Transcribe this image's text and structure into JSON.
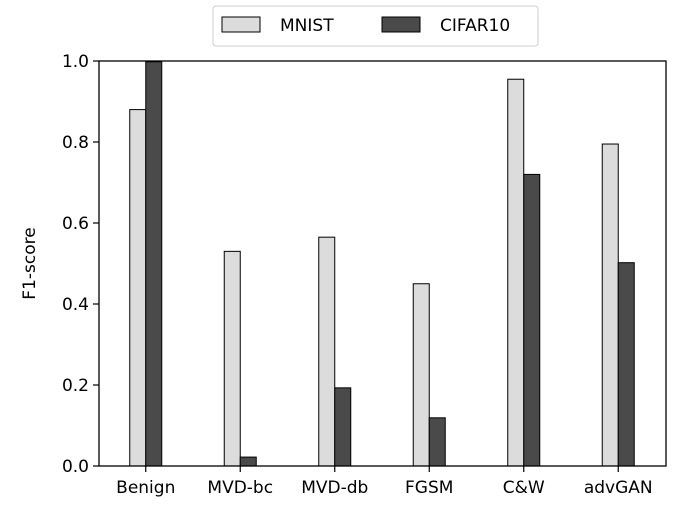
{
  "chart_data": {
    "type": "bar",
    "categories": [
      "Benign",
      "MVD-bc",
      "MVD-db",
      "FGSM",
      "C&W",
      "advGAN"
    ],
    "series": [
      {
        "name": "MNIST",
        "values": [
          0.88,
          0.53,
          0.565,
          0.45,
          0.955,
          0.795
        ],
        "color": "#dcdcdc"
      },
      {
        "name": "CIFAR10",
        "values": [
          0.998,
          0.022,
          0.193,
          0.119,
          0.72,
          0.502
        ],
        "color": "#4a4a4a"
      }
    ],
    "ylabel": "F1-score",
    "ylim": [
      0,
      1.0
    ],
    "yticks": [
      "0.0",
      "0.2",
      "0.4",
      "0.6",
      "0.8",
      "1.0"
    ],
    "grid": false,
    "legend_position": "top-center"
  }
}
